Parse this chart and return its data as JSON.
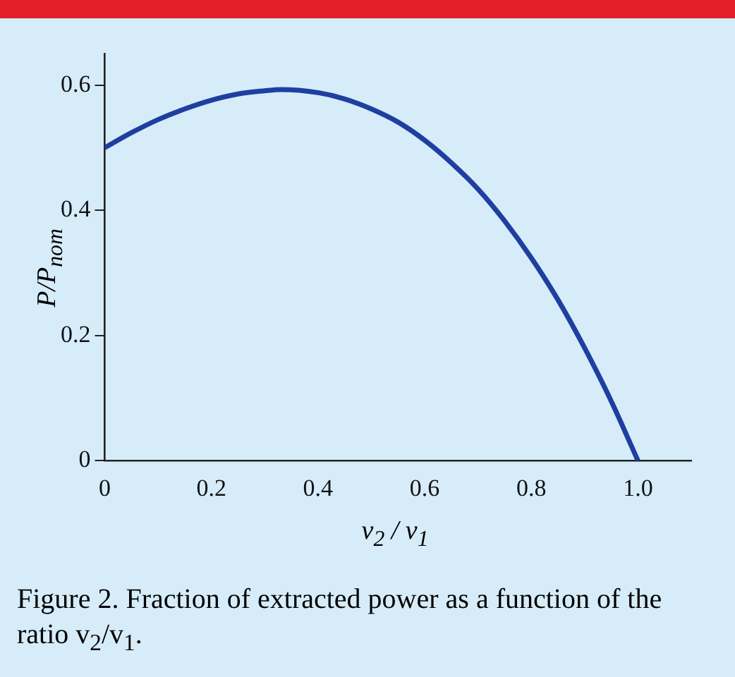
{
  "chart_data": {
    "type": "line",
    "xlabel": "v$_{2}$ / v$_{1}$",
    "ylabel": "P/P$_{nom}$",
    "annotations": [
      "Figure 2. Fraction of extracted power as a function of the ratio v$_{2}$/v$_{1}$."
    ],
    "x": [
      0,
      0.05,
      0.1,
      0.15,
      0.2,
      0.25,
      0.3,
      0.33,
      0.4,
      0.45,
      0.5,
      0.55,
      0.6,
      0.65,
      0.7,
      0.75,
      0.8,
      0.85,
      0.9,
      0.95,
      1.0
    ],
    "series": [
      {
        "color": "#1f3fa0",
        "values": [
          0.5,
          0.524,
          0.545,
          0.562,
          0.576,
          0.586,
          0.591,
          0.593,
          0.588,
          0.578,
          0.562,
          0.541,
          0.512,
          0.476,
          0.434,
          0.383,
          0.324,
          0.257,
          0.18,
          0.095,
          0
        ]
      }
    ],
    "xlim": [
      0,
      1.1
    ],
    "ylim": [
      0,
      0.65
    ],
    "xticks": [
      0,
      0.2,
      0.4,
      0.6,
      0.8,
      {
        "value": 1,
        "label": "1.0"
      }
    ],
    "yticks": [
      0,
      0.2,
      0.4,
      0.6
    ],
    "grid": false,
    "legend": false,
    "marker": "none",
    "line_style": "solid"
  }
}
